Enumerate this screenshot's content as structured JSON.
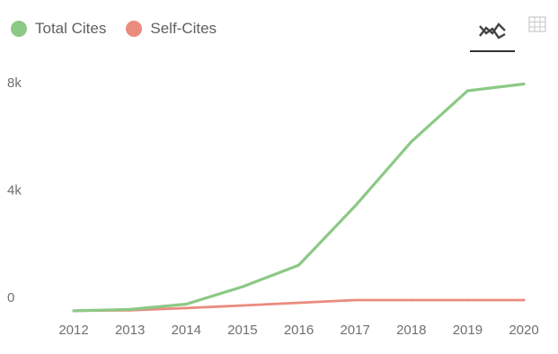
{
  "legend": {
    "items": [
      {
        "label": "Total Cites",
        "color": "#8cc985"
      },
      {
        "label": "Self-Cites",
        "color": "#ea8b7e"
      }
    ]
  },
  "view_toggle": {
    "buttons": [
      {
        "icon": "line-chart-icon",
        "active": true
      },
      {
        "icon": "table-grid-icon",
        "active": false
      }
    ]
  },
  "chart_data": {
    "type": "line",
    "x": [
      "2012",
      "2013",
      "2014",
      "2015",
      "2016",
      "2017",
      "2018",
      "2019",
      "2020"
    ],
    "series": [
      {
        "name": "Total Cites",
        "color": "#8cc985",
        "values": [
          -500,
          -450,
          -250,
          400,
          1200,
          3400,
          5800,
          7700,
          7950
        ]
      },
      {
        "name": "Self-Cites",
        "color": "#ea8b7e",
        "values": [
          -500,
          -480,
          -400,
          -300,
          -200,
          -100,
          -100,
          -100,
          -100
        ]
      }
    ],
    "y_ticks": [
      {
        "value": 8000,
        "label": "8k"
      },
      {
        "value": 4000,
        "label": "4k"
      },
      {
        "value": 0,
        "label": "0"
      }
    ],
    "ylim": [
      -500,
      8000
    ],
    "grid": false,
    "legend_position": "top-left"
  }
}
